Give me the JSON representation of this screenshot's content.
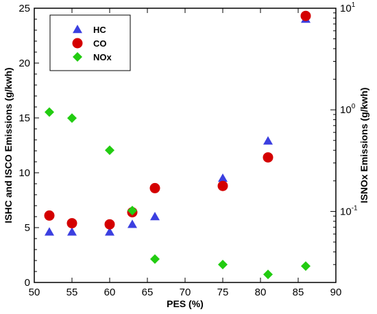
{
  "chart_data": {
    "type": "scatter",
    "xlabel": "PES (%)",
    "ylabel_left": "ISHC and ISCO Emissions (g/kwh)",
    "ylabel_right": "ISNOx Emissions (g/kwh)",
    "xlim": [
      50,
      90
    ],
    "x_ticks": [
      50,
      55,
      60,
      65,
      70,
      75,
      80,
      85,
      90
    ],
    "ylim_left": [
      0,
      25
    ],
    "y_ticks_left": [
      0,
      5,
      10,
      15,
      20,
      25
    ],
    "y_right_scale": "log",
    "ylim_right": [
      0.02,
      10
    ],
    "y_ticks_right": [
      {
        "value": 0.1,
        "base": "10",
        "exp": "-1"
      },
      {
        "value": 1,
        "base": "10",
        "exp": "0"
      },
      {
        "value": 10,
        "base": "10",
        "exp": "1"
      }
    ],
    "legend_position": "top-left",
    "series": [
      {
        "name": "HC",
        "marker": "triangle",
        "color": "#3b3fe0",
        "axis": "left",
        "x": [
          52,
          55,
          60,
          63,
          66,
          75,
          81,
          86
        ],
        "y": [
          4.6,
          4.6,
          4.6,
          5.3,
          6.0,
          9.5,
          12.9,
          24.0
        ]
      },
      {
        "name": "CO",
        "marker": "circle",
        "color": "#d40000",
        "axis": "left",
        "x": [
          52,
          55,
          60,
          63,
          66,
          75,
          81,
          86
        ],
        "y": [
          6.1,
          5.4,
          5.3,
          6.4,
          8.6,
          8.8,
          11.4,
          24.3
        ]
      },
      {
        "name": "NOx",
        "marker": "diamond",
        "color": "#22cc11",
        "axis": "right",
        "x": [
          52,
          55,
          60,
          63,
          66,
          75,
          81,
          86
        ],
        "y": [
          0.95,
          0.83,
          0.4,
          0.102,
          0.034,
          0.03,
          0.024,
          0.029
        ]
      }
    ]
  }
}
